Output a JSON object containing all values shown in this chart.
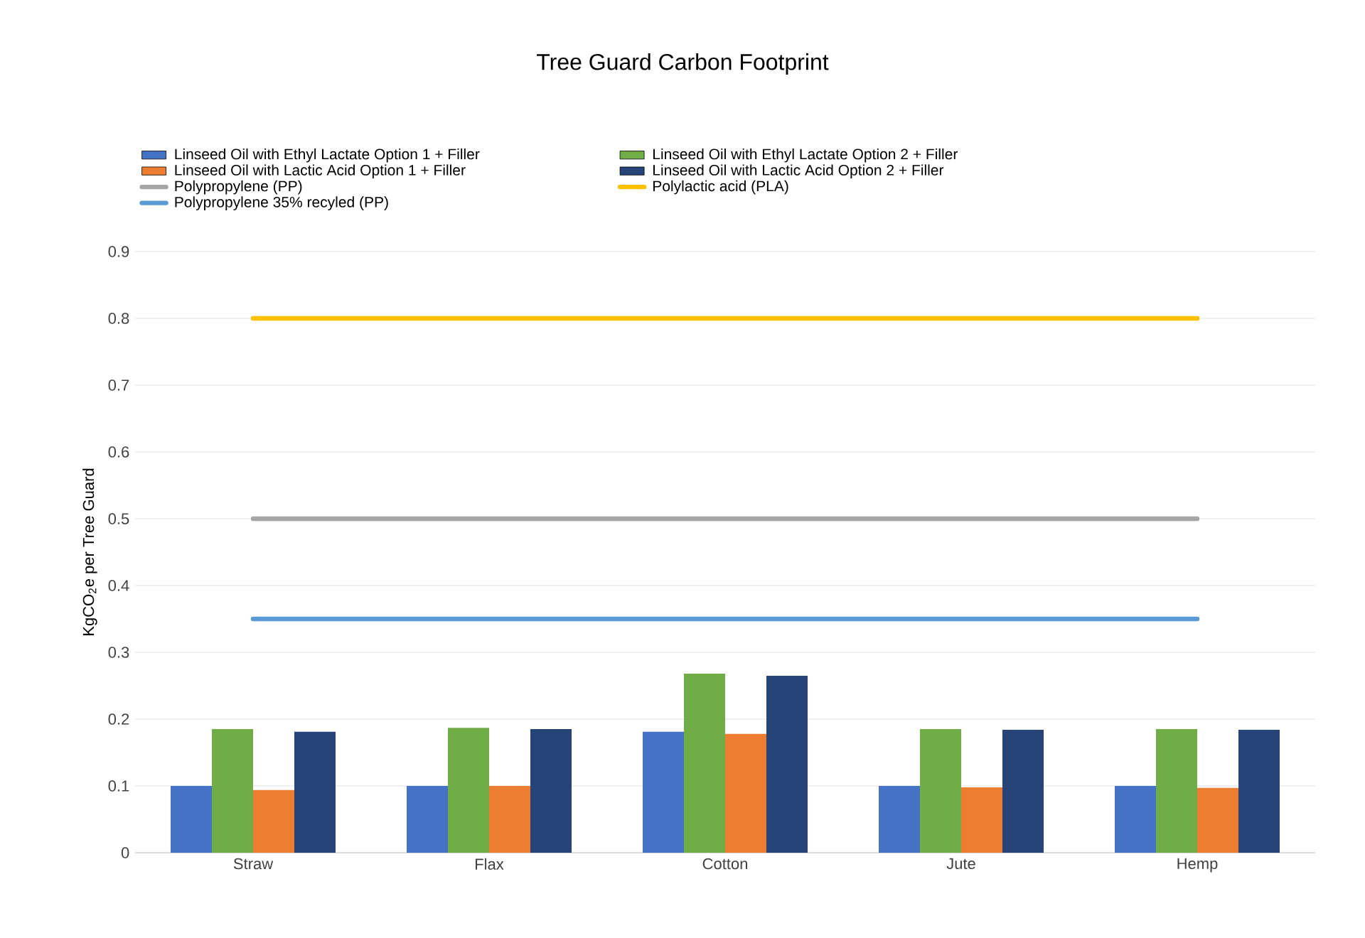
{
  "chart_data": {
    "type": "bar",
    "title": "Tree Guard Carbon Footprint",
    "ylabel": "KgCO$_{2}$e per Tree Guard",
    "categories": [
      "Straw",
      "Flax",
      "Cotton",
      "Jute",
      "Hemp"
    ],
    "series": [
      {
        "name": "Linseed Oil with Ethyl Lactate Option 1 + Filler",
        "color": "#4472c4",
        "values": [
          0.1,
          0.1,
          0.181,
          0.1,
          0.1
        ]
      },
      {
        "name": "Linseed Oil with Ethyl Lactate Option 2 + Filler",
        "color": "#70ad47",
        "values": [
          0.185,
          0.187,
          0.268,
          0.185,
          0.185
        ]
      },
      {
        "name": "Linseed Oil with Lactic Acid Option 1 + Filler",
        "color": "#ed7d31",
        "values": [
          0.094,
          0.1,
          0.178,
          0.098,
          0.097
        ]
      },
      {
        "name": "Linseed Oil with Lactic Acid Option 2 + Filler",
        "color": "#264478",
        "values": [
          0.181,
          0.185,
          0.265,
          0.184,
          0.184
        ]
      },
      {
        "name": "Polypropylene (PP)",
        "color": "#a5a5a5",
        "type": "line",
        "values": [
          0.5,
          0.5,
          0.5,
          0.5,
          0.5
        ]
      },
      {
        "name": "Polylactic acid (PLA)",
        "color": "#ffc000",
        "type": "line",
        "values": [
          0.8,
          0.8,
          0.8,
          0.8,
          0.8
        ]
      },
      {
        "name": "Polypropylene 35% recyled (PP)",
        "color": "#5b9bd5",
        "type": "line",
        "values": [
          0.35,
          0.35,
          0.35,
          0.35,
          0.35
        ]
      }
    ],
    "ylim": [
      0,
      0.9
    ],
    "yticks": [
      0,
      0.1,
      0.2,
      0.3,
      0.4,
      0.5,
      0.6,
      0.7,
      0.8,
      0.9
    ],
    "grid": "y",
    "legend": "top"
  }
}
